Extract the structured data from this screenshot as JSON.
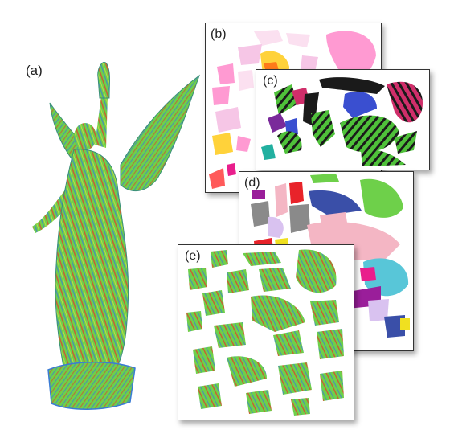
{
  "figure": {
    "labels": {
      "a": "(a)",
      "b": "(b)",
      "c": "(c)",
      "d": "(d)",
      "e": "(e)"
    },
    "colors": {
      "statue_fill": "#6ed04a",
      "statue_stripe_red": "#e0402a",
      "statue_stripe_blue": "#3a7bd5",
      "b_palette": [
        "#f6c6e6",
        "#ff9ad2",
        "#ffd23a",
        "#ff7a1a",
        "#e91e8c",
        "#ff5a5a",
        "#fbe0f0"
      ],
      "c_palette": [
        "#1a1a1a",
        "#3a4fd0",
        "#4fc13a",
        "#d02e6a",
        "#7a2a9a",
        "#22b0a0"
      ],
      "d_palette": [
        "#6ed04a",
        "#3a4fa8",
        "#f4b6c4",
        "#8a8a8a",
        "#d9c2f0",
        "#e8232a",
        "#58c6d8",
        "#9a1e9a",
        "#f0e020"
      ],
      "e_fill": "#6ed04a"
    }
  }
}
